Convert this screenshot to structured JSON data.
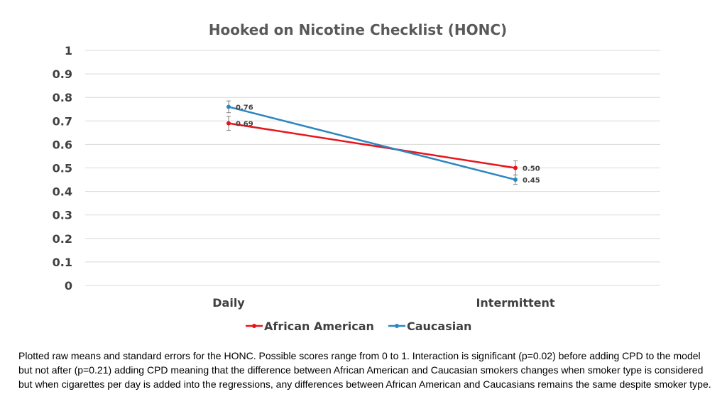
{
  "chart_data": {
    "type": "line",
    "title": "Hooked on Nicotine Checklist (HONC)",
    "categories": [
      "Daily",
      "Intermittent"
    ],
    "y_ticks": [
      "0",
      "0.1",
      "0.2",
      "0.3",
      "0.4",
      "0.5",
      "0.6",
      "0.7",
      "0.8",
      "0.9",
      "1"
    ],
    "ylim": [
      0,
      1
    ],
    "grid": true,
    "legend_position": "bottom",
    "error_bars": true,
    "series": [
      {
        "name": "African American",
        "color": "#e8141b",
        "values": [
          0.69,
          0.5
        ],
        "data_labels": [
          "0.69",
          "0.50"
        ],
        "errors": [
          0.03,
          0.03
        ]
      },
      {
        "name": "Caucasian",
        "color": "#2e86c1",
        "values": [
          0.76,
          0.45
        ],
        "data_labels": [
          "0.76",
          "0.45"
        ],
        "errors": [
          0.025,
          0.02
        ]
      }
    ]
  },
  "caption": "Plotted raw means and standard errors for the HONC.  Possible scores range from 0 to 1.  Interaction is significant (p=0.02) before adding CPD to the model but not after (p=0.21) adding CPD meaning that the difference between African American and Caucasian smokers changes when smoker type is considered but when cigarettes per day is added into the regressions, any differences between African American and Caucasians remains the same despite smoker type."
}
